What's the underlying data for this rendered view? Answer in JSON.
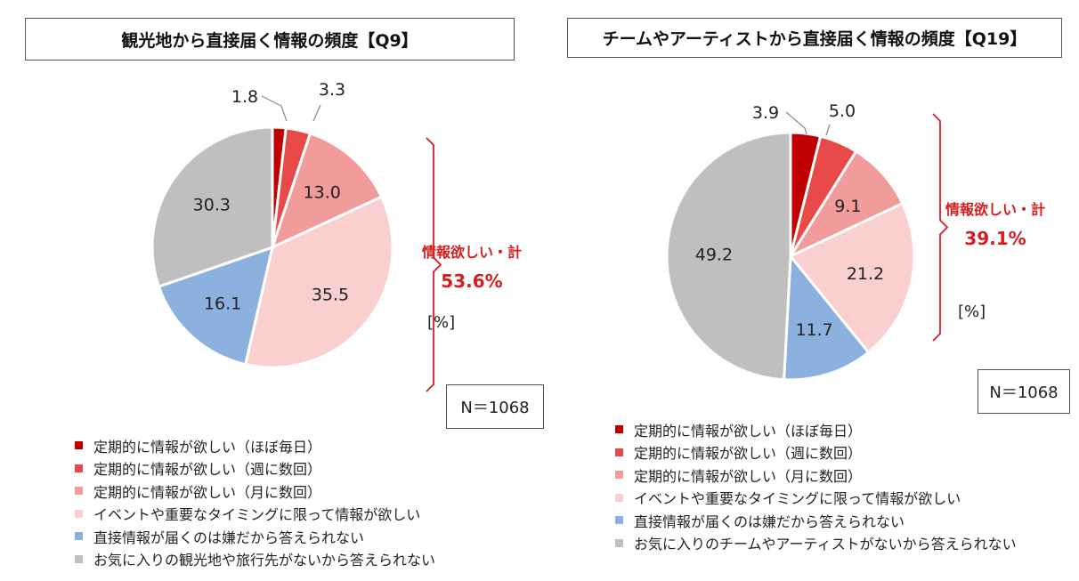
{
  "chart_data": [
    {
      "type": "pie",
      "title": "観光地から直接届く情報の頻度【Q9】",
      "unit_label": "[%]",
      "n_label": "N＝1068",
      "summary_label": "情報欲しい・計",
      "summary_value": "53.6%",
      "slices": [
        {
          "name": "定期的に情報が欲しい（ほぼ毎日）",
          "value": 1.8,
          "label": "1.8",
          "color": "#c00000"
        },
        {
          "name": "定期的に情報が欲しい（週に数回）",
          "value": 3.3,
          "label": "3.3",
          "color": "#e84a4a"
        },
        {
          "name": "定期的に情報が欲しい（月に数回）",
          "value": 13.0,
          "label": "13.0",
          "color": "#f19b9b"
        },
        {
          "name": "イベントや重要なタイミングに限って情報が欲しい",
          "value": 35.5,
          "label": "35.5",
          "color": "#f9cfcf"
        },
        {
          "name": "直接情報が届くのは嫌だから答えられない",
          "value": 16.1,
          "label": "16.1",
          "color": "#8db1df"
        },
        {
          "name": "お気に入りの観光地や旅行先がないから答えられない",
          "value": 30.3,
          "label": "30.3",
          "color": "#bfbfbf"
        }
      ]
    },
    {
      "type": "pie",
      "title": "チームやアーティストから直接届く情報の頻度【Q19】",
      "unit_label": "[%]",
      "n_label": "N＝1068",
      "summary_label": "情報欲しい・計",
      "summary_value": "39.1%",
      "slices": [
        {
          "name": "定期的に情報が欲しい（ほぼ毎日）",
          "value": 3.9,
          "label": "3.9",
          "color": "#c00000"
        },
        {
          "name": "定期的に情報が欲しい（週に数回）",
          "value": 5.0,
          "label": "5.0",
          "color": "#e84a4a"
        },
        {
          "name": "定期的に情報が欲しい（月に数回）",
          "value": 9.1,
          "label": "9.1",
          "color": "#f19b9b"
        },
        {
          "name": "イベントや重要なタイミングに限って情報が欲しい",
          "value": 21.2,
          "label": "21.2",
          "color": "#f9cfcf"
        },
        {
          "name": "直接情報が届くのは嫌だから答えられない",
          "value": 11.7,
          "label": "11.7",
          "color": "#8db1df"
        },
        {
          "name": "お気に入りのチームやアーティストがないから答えられない",
          "value": 49.2,
          "label": "49.2",
          "color": "#bfbfbf"
        }
      ]
    }
  ]
}
